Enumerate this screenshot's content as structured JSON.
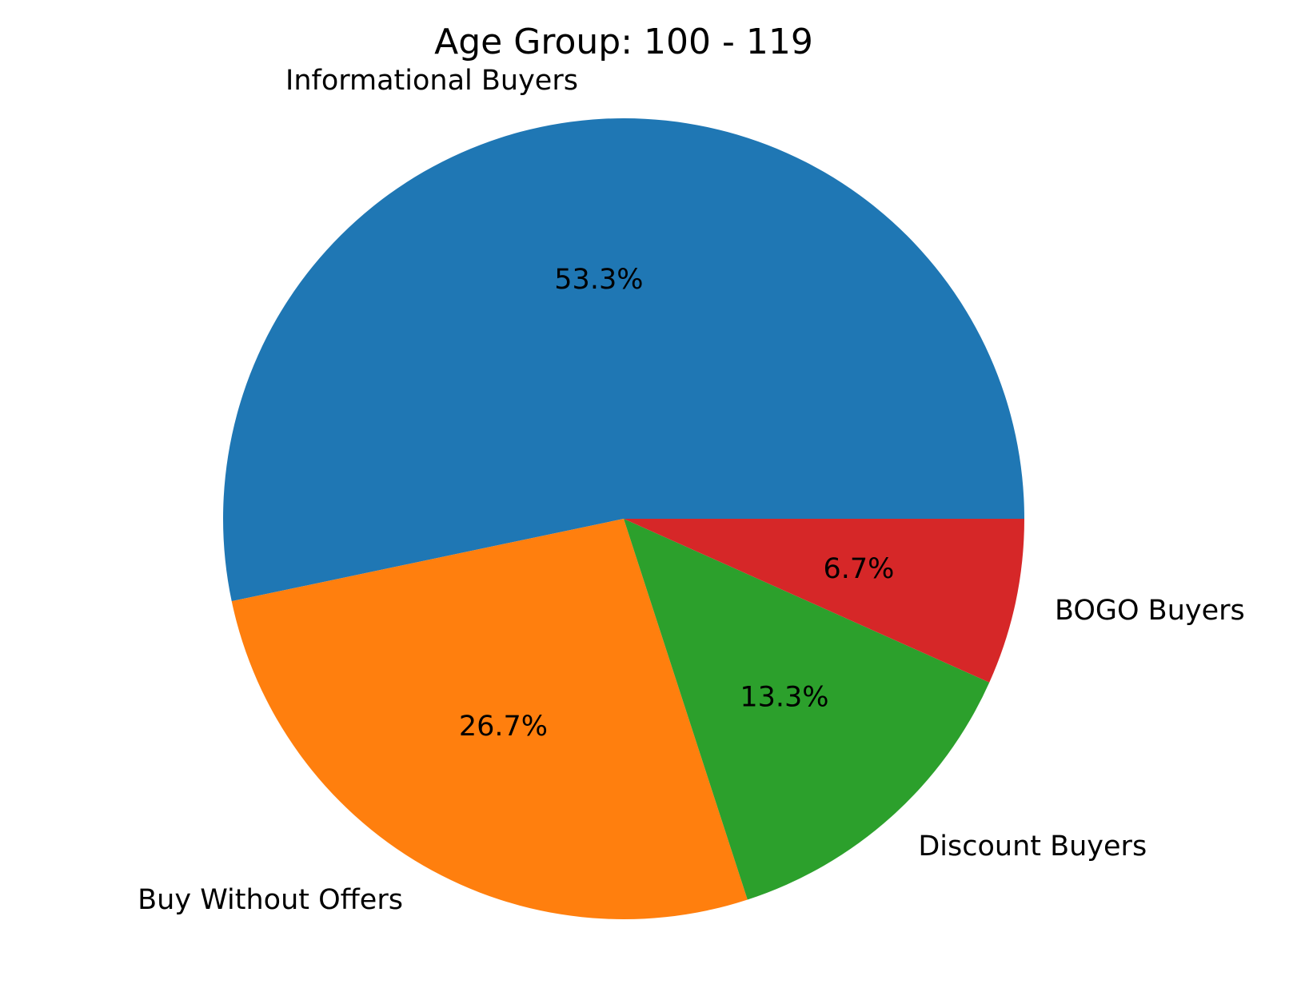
{
  "chart_data": {
    "type": "pie",
    "title": "Age Group: 100 - 119",
    "start_angle_deg": 0,
    "direction": "counterclockwise",
    "slices": [
      {
        "label": "Informational Buyers",
        "value": 53.3,
        "pct_label": "53.3%",
        "color": "#1f77b4"
      },
      {
        "label": "Buy Without Offers",
        "value": 26.7,
        "pct_label": "26.7%",
        "color": "#ff7f0e"
      },
      {
        "label": "Discount Buyers",
        "value": 13.3,
        "pct_label": "13.3%",
        "color": "#2ca02c"
      },
      {
        "label": "BOGO Buyers",
        "value": 6.7,
        "pct_label": "6.7%",
        "color": "#d62728"
      }
    ]
  }
}
